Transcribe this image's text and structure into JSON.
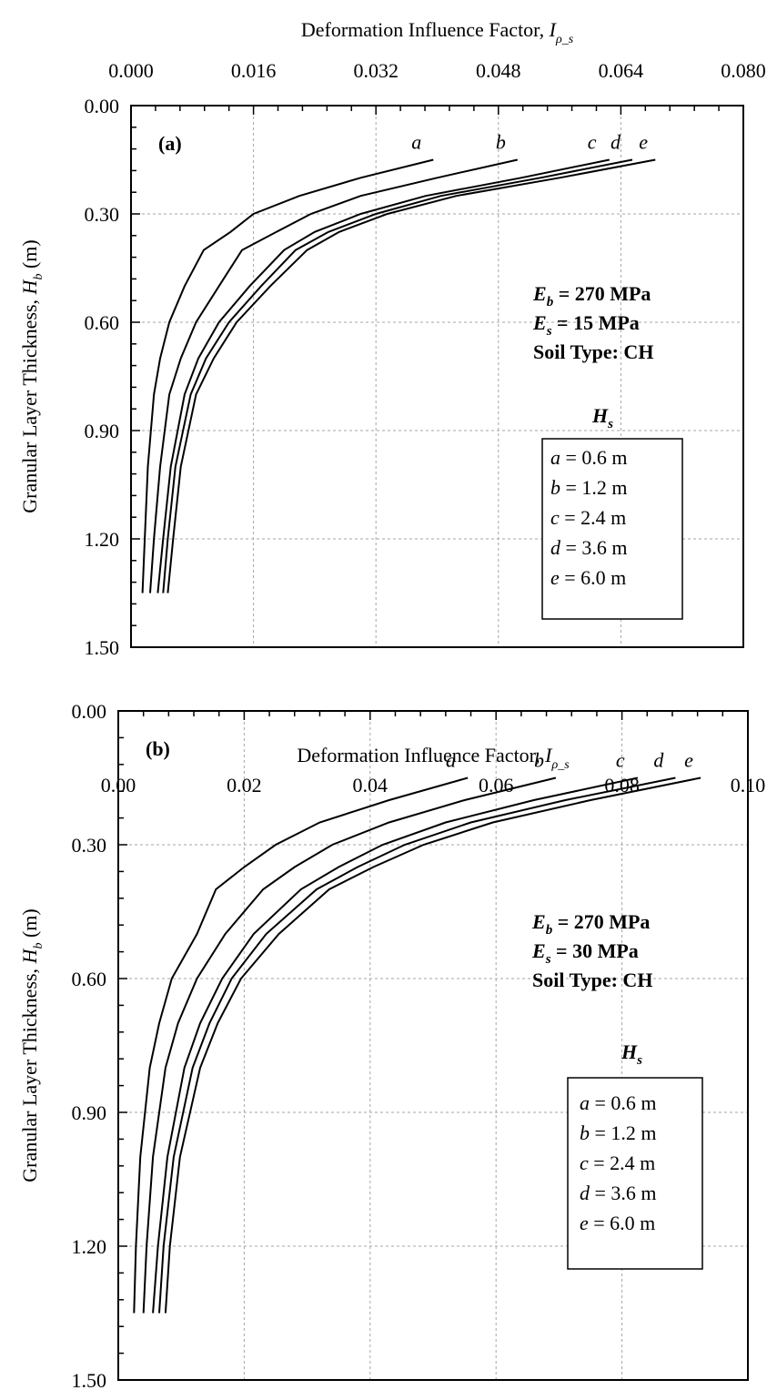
{
  "chart_data": [
    {
      "type": "line",
      "panel": "(a)",
      "xlabel": "Deformation Influence Factor, ",
      "xlabel_symbol": "I",
      "xlabel_sub": "ρ_s",
      "ylabel": "Granular Layer Thickness, ",
      "ylabel_symbol": "H",
      "ylabel_sub": "b",
      "ylabel_unit": " (m)",
      "xlim": [
        0,
        0.08
      ],
      "ylim": [
        0,
        1.5
      ],
      "xticks": [
        "0.000",
        "0.016",
        "0.032",
        "0.048",
        "0.064",
        "0.080"
      ],
      "yticks": [
        "0.00",
        "0.30",
        "0.60",
        "0.90",
        "1.20",
        "1.50"
      ],
      "grid": true,
      "x_axis_position": "top",
      "y_inverted": true,
      "params": [
        {
          "sym": "E",
          "sub": "b",
          "text": " = 270 MPa"
        },
        {
          "sym": "E",
          "sub": "s",
          "text": " = 15 MPa"
        },
        {
          "sym": "",
          "sub": "",
          "text": "Soil Type: CH"
        }
      ],
      "legend_title": {
        "sym": "H",
        "sub": "s"
      },
      "legend_entries": [
        {
          "sym": "a",
          "text": " = 0.6 m"
        },
        {
          "sym": "b",
          "text": " = 1.2 m"
        },
        {
          "sym": "c",
          "text": " = 2.4 m"
        },
        {
          "sym": "d",
          "text": " = 3.6 m"
        },
        {
          "sym": "e",
          "text": " = 6.0 m"
        }
      ],
      "series": [
        {
          "name": "a",
          "x": [
            0.0395,
            0.03,
            0.022,
            0.016,
            0.013,
            0.0095,
            0.007,
            0.005,
            0.0038,
            0.003,
            0.0022,
            0.0018,
            0.0015
          ],
          "y": [
            0.15,
            0.2,
            0.25,
            0.3,
            0.35,
            0.4,
            0.5,
            0.6,
            0.7,
            0.8,
            1.0,
            1.2,
            1.35
          ]
        },
        {
          "name": "b",
          "x": [
            0.0505,
            0.04,
            0.03,
            0.0235,
            0.019,
            0.0145,
            0.0115,
            0.0085,
            0.0065,
            0.005,
            0.0038,
            0.003,
            0.0025
          ],
          "y": [
            0.15,
            0.2,
            0.25,
            0.3,
            0.35,
            0.4,
            0.5,
            0.6,
            0.7,
            0.8,
            1.0,
            1.2,
            1.35
          ]
        },
        {
          "name": "c",
          "x": [
            0.0625,
            0.051,
            0.0385,
            0.03,
            0.024,
            0.02,
            0.0155,
            0.0115,
            0.0088,
            0.007,
            0.0052,
            0.0042,
            0.0035
          ],
          "y": [
            0.15,
            0.2,
            0.25,
            0.3,
            0.35,
            0.4,
            0.5,
            0.6,
            0.7,
            0.8,
            1.0,
            1.2,
            1.35
          ]
        },
        {
          "name": "d",
          "x": [
            0.0655,
            0.0535,
            0.0405,
            0.032,
            0.0258,
            0.0215,
            0.017,
            0.0128,
            0.0098,
            0.0078,
            0.0058,
            0.0048,
            0.0042
          ],
          "y": [
            0.15,
            0.2,
            0.25,
            0.3,
            0.35,
            0.4,
            0.5,
            0.6,
            0.7,
            0.8,
            1.0,
            1.2,
            1.35
          ]
        },
        {
          "name": "e",
          "x": [
            0.0685,
            0.056,
            0.0425,
            0.0335,
            0.0272,
            0.023,
            0.0182,
            0.0138,
            0.0108,
            0.0085,
            0.0065,
            0.0055,
            0.0048
          ],
          "y": [
            0.15,
            0.2,
            0.25,
            0.3,
            0.35,
            0.4,
            0.5,
            0.6,
            0.7,
            0.8,
            1.0,
            1.2,
            1.35
          ]
        }
      ]
    },
    {
      "type": "line",
      "panel": "(b)",
      "xlabel": "Deformation Influence Factor, ",
      "xlabel_symbol": "I",
      "xlabel_sub": "ρ_s",
      "ylabel": "Granular Layer Thickness, ",
      "ylabel_symbol": "H",
      "ylabel_sub": "b",
      "ylabel_unit": " (m)",
      "xlim": [
        0,
        0.1
      ],
      "ylim": [
        0,
        1.5
      ],
      "xticks": [
        "0.00",
        "0.02",
        "0.04",
        "0.06",
        "0.08",
        "0.10"
      ],
      "yticks": [
        "0.00",
        "0.30",
        "0.60",
        "0.90",
        "1.20",
        "1.50"
      ],
      "grid": true,
      "x_axis_position": "top",
      "y_inverted": true,
      "params": [
        {
          "sym": "E",
          "sub": "b",
          "text": " = 270 MPa"
        },
        {
          "sym": "E",
          "sub": "s",
          "text": " = 30 MPa"
        },
        {
          "sym": "",
          "sub": "",
          "text": "Soil Type: CH"
        }
      ],
      "legend_title": {
        "sym": "H",
        "sub": "s"
      },
      "legend_entries": [
        {
          "sym": "a",
          "text": " = 0.6 m"
        },
        {
          "sym": "b",
          "text": " = 1.2 m"
        },
        {
          "sym": "c",
          "text": " = 2.4 m"
        },
        {
          "sym": "d",
          "text": " = 3.6 m"
        },
        {
          "sym": "e",
          "text": " = 6.0 m"
        }
      ],
      "series": [
        {
          "name": "a",
          "x": [
            0.0555,
            0.043,
            0.032,
            0.025,
            0.02,
            0.0155,
            0.0125,
            0.0085,
            0.0065,
            0.005,
            0.0035,
            0.0028,
            0.0025
          ],
          "y": [
            0.15,
            0.2,
            0.25,
            0.3,
            0.35,
            0.4,
            0.5,
            0.6,
            0.7,
            0.8,
            1.0,
            1.2,
            1.35
          ]
        },
        {
          "name": "b",
          "x": [
            0.0695,
            0.055,
            0.043,
            0.034,
            0.028,
            0.023,
            0.017,
            0.0125,
            0.0095,
            0.0075,
            0.0055,
            0.0045,
            0.004
          ],
          "y": [
            0.15,
            0.2,
            0.25,
            0.3,
            0.35,
            0.4,
            0.5,
            0.6,
            0.7,
            0.8,
            1.0,
            1.2,
            1.35
          ]
        },
        {
          "name": "c",
          "x": [
            0.0825,
            0.066,
            0.052,
            0.042,
            0.035,
            0.029,
            0.0215,
            0.0165,
            0.013,
            0.0105,
            0.0078,
            0.0063,
            0.0055
          ],
          "y": [
            0.15,
            0.2,
            0.25,
            0.3,
            0.35,
            0.4,
            0.5,
            0.6,
            0.7,
            0.8,
            1.0,
            1.2,
            1.35
          ]
        },
        {
          "name": "d",
          "x": [
            0.0885,
            0.071,
            0.056,
            0.0455,
            0.038,
            0.0315,
            0.0235,
            0.018,
            0.0145,
            0.0118,
            0.0088,
            0.0072,
            0.0065
          ],
          "y": [
            0.15,
            0.2,
            0.25,
            0.3,
            0.35,
            0.4,
            0.5,
            0.6,
            0.7,
            0.8,
            1.0,
            1.2,
            1.35
          ]
        },
        {
          "name": "e",
          "x": [
            0.0925,
            0.075,
            0.0595,
            0.0485,
            0.0405,
            0.0335,
            0.0255,
            0.0195,
            0.0158,
            0.013,
            0.0098,
            0.0082,
            0.0075
          ],
          "y": [
            0.15,
            0.2,
            0.25,
            0.3,
            0.35,
            0.4,
            0.5,
            0.6,
            0.7,
            0.8,
            1.0,
            1.2,
            1.35
          ]
        }
      ]
    }
  ]
}
